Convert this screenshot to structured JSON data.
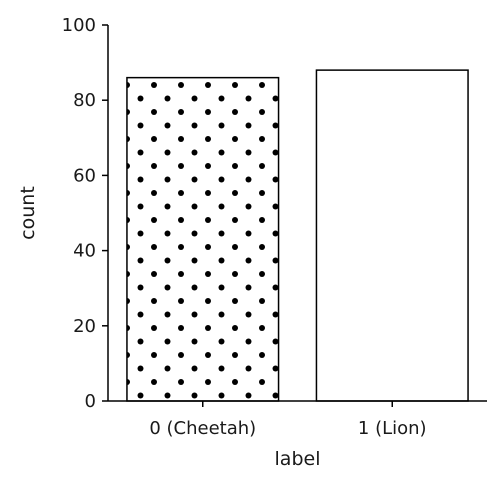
{
  "chart_data": {
    "type": "bar",
    "categories": [
      "0 (Cheetah)",
      "1 (Lion)"
    ],
    "values": [
      86,
      88
    ],
    "xlabel": "label",
    "ylabel": "count",
    "ylim": [
      0,
      100
    ],
    "yticks": [
      0,
      20,
      40,
      60,
      80,
      100
    ],
    "grid": false,
    "bar_fill": "#ffffff",
    "bar_edge": "#000000",
    "hatch": [
      "dots",
      "none"
    ]
  }
}
